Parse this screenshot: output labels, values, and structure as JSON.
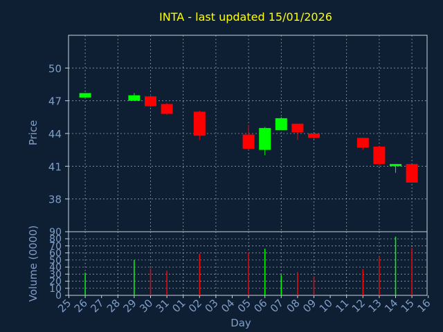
{
  "title": "INTA - last updated 15/01/2026",
  "colors": {
    "background": "#0f1f33",
    "plot_background": "#0f1f33",
    "axis": "#c8d4e0",
    "grid": "#c8d4e0",
    "title": "#ffff00",
    "label": "#7f9fc8",
    "up": "#00ff00",
    "down": "#ff0000"
  },
  "chart_data": [
    {
      "type": "candlestick",
      "ylabel": "Price",
      "ylim": [
        35,
        53
      ],
      "yticks": [
        38,
        41,
        44,
        47,
        50
      ],
      "grid": true,
      "x_labels": [
        "25",
        "26",
        "27",
        "28",
        "29",
        "30",
        "31",
        "01",
        "02",
        "03",
        "04",
        "05",
        "06",
        "07",
        "08",
        "09",
        "10",
        "11",
        "12",
        "13",
        "14",
        "15",
        "16"
      ],
      "candles": [
        {
          "x": "26",
          "open": 47.3,
          "close": 47.7,
          "high": 47.7,
          "low": 47.3
        },
        {
          "x": "29",
          "open": 47.0,
          "close": 47.5,
          "high": 47.7,
          "low": 47.0
        },
        {
          "x": "30",
          "open": 47.4,
          "close": 46.5,
          "high": 47.6,
          "low": 46.4
        },
        {
          "x": "31",
          "open": 46.7,
          "close": 45.8,
          "high": 46.8,
          "low": 45.7
        },
        {
          "x": "02",
          "open": 46.0,
          "close": 43.8,
          "high": 46.1,
          "low": 43.4
        },
        {
          "x": "05",
          "open": 43.9,
          "close": 42.6,
          "high": 44.8,
          "low": 42.5
        },
        {
          "x": "06",
          "open": 42.5,
          "close": 44.5,
          "high": 44.6,
          "low": 42.0
        },
        {
          "x": "07",
          "open": 44.3,
          "close": 45.4,
          "high": 45.5,
          "low": 44.3
        },
        {
          "x": "08",
          "open": 44.9,
          "close": 44.1,
          "high": 44.9,
          "low": 43.4
        },
        {
          "x": "09",
          "open": 44.0,
          "close": 43.6,
          "high": 44.0,
          "low": 43.5
        },
        {
          "x": "12",
          "open": 43.6,
          "close": 42.7,
          "high": 43.6,
          "low": 42.5
        },
        {
          "x": "13",
          "open": 42.8,
          "close": 41.2,
          "high": 42.8,
          "low": 41.0
        },
        {
          "x": "14",
          "open": 41.0,
          "close": 41.2,
          "high": 41.2,
          "low": 40.4
        },
        {
          "x": "15",
          "open": 41.2,
          "close": 39.5,
          "high": 41.2,
          "low": 39.5
        }
      ]
    },
    {
      "type": "bar",
      "ylabel": "Volume (0000)",
      "xlabel": "Day",
      "ylim": [
        0,
        90
      ],
      "yticks": [
        0,
        10,
        20,
        30,
        40,
        50,
        60,
        70,
        80,
        90
      ],
      "grid": true,
      "x_labels": [
        "25",
        "26",
        "27",
        "28",
        "29",
        "30",
        "31",
        "01",
        "02",
        "03",
        "04",
        "05",
        "06",
        "07",
        "08",
        "09",
        "10",
        "11",
        "12",
        "13",
        "14",
        "15",
        "16"
      ],
      "bars": [
        {
          "x": "26",
          "value": 32,
          "direction": "up"
        },
        {
          "x": "29",
          "value": 50,
          "direction": "up"
        },
        {
          "x": "30",
          "value": 38,
          "direction": "down"
        },
        {
          "x": "31",
          "value": 35,
          "direction": "down"
        },
        {
          "x": "02",
          "value": 59,
          "direction": "down"
        },
        {
          "x": "05",
          "value": 61,
          "direction": "down"
        },
        {
          "x": "06",
          "value": 66,
          "direction": "up"
        },
        {
          "x": "07",
          "value": 29,
          "direction": "up"
        },
        {
          "x": "08",
          "value": 33,
          "direction": "down"
        },
        {
          "x": "09",
          "value": 27,
          "direction": "down"
        },
        {
          "x": "12",
          "value": 37,
          "direction": "down"
        },
        {
          "x": "13",
          "value": 55,
          "direction": "down"
        },
        {
          "x": "14",
          "value": 83,
          "direction": "up"
        },
        {
          "x": "15",
          "value": 67,
          "direction": "down"
        }
      ]
    }
  ]
}
